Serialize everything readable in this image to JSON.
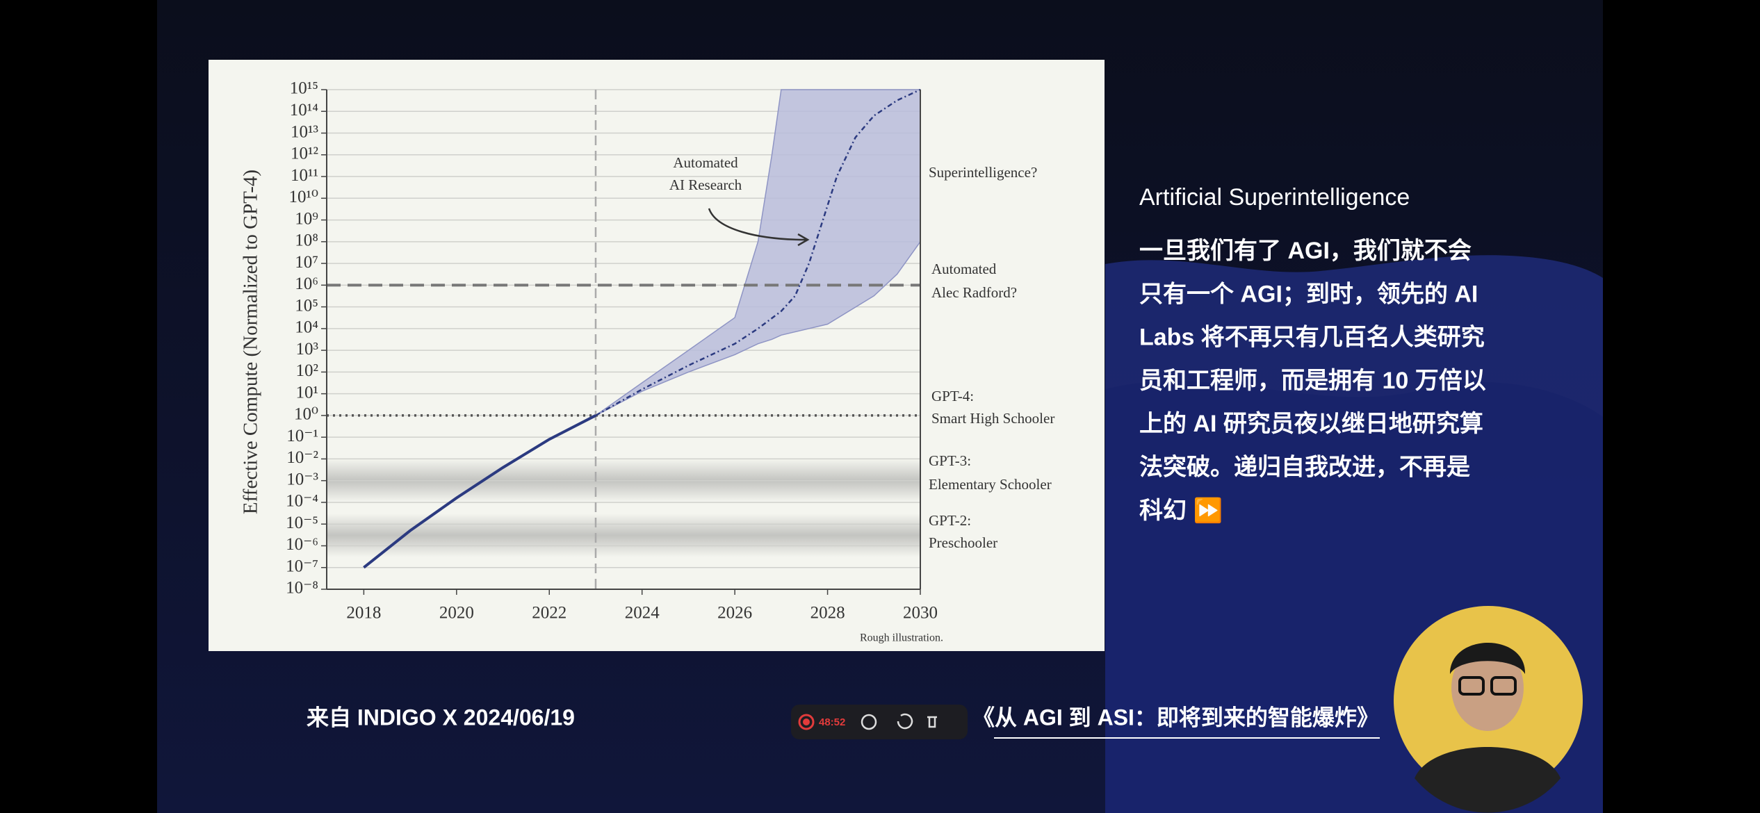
{
  "chart_data": {
    "type": "line",
    "yscale": "log",
    "ylabel": "Effective Compute (Normalized to GPT-4)",
    "note": "Rough illustration.",
    "xlim": [
      2017.2,
      2030
    ],
    "xticks": [
      2018,
      2020,
      2022,
      2024,
      2026,
      2028,
      2030
    ],
    "ylim": [
      1e-08,
      1000000000000000.0
    ],
    "yticks": [
      {
        "value": 1e-08,
        "label": "10⁻⁸"
      },
      {
        "value": 1e-07,
        "label": "10⁻⁷"
      },
      {
        "value": 1e-06,
        "label": "10⁻⁶"
      },
      {
        "value": 1e-05,
        "label": "10⁻⁵"
      },
      {
        "value": 0.0001,
        "label": "10⁻⁴"
      },
      {
        "value": 0.001,
        "label": "10⁻³"
      },
      {
        "value": 0.01,
        "label": "10⁻²"
      },
      {
        "value": 0.1,
        "label": "10⁻¹"
      },
      {
        "value": 1,
        "label": "10⁰"
      },
      {
        "value": 10.0,
        "label": "10¹"
      },
      {
        "value": 100.0,
        "label": "10²"
      },
      {
        "value": 1000.0,
        "label": "10³"
      },
      {
        "value": 10000.0,
        "label": "10⁴"
      },
      {
        "value": 100000.0,
        "label": "10⁵"
      },
      {
        "value": 1000000.0,
        "label": "10⁶"
      },
      {
        "value": 10000000.0,
        "label": "10⁷"
      },
      {
        "value": 100000000.0,
        "label": "10⁸"
      },
      {
        "value": 1000000000.0,
        "label": "10⁹"
      },
      {
        "value": 10000000000.0,
        "label": "10¹⁰"
      },
      {
        "value": 100000000000.0,
        "label": "10¹¹"
      },
      {
        "value": 1000000000000.0,
        "label": "10¹²"
      },
      {
        "value": 10000000000000.0,
        "label": "10¹³"
      },
      {
        "value": 100000000000000.0,
        "label": "10¹⁴"
      },
      {
        "value": 1000000000000000.0,
        "label": "10¹⁵"
      }
    ],
    "grid": true,
    "vline": 2023,
    "series": [
      {
        "style": "solid",
        "color": "#2b3a80",
        "x": [
          2018,
          2019,
          2020,
          2021,
          2022,
          2023
        ],
        "values": [
          1e-07,
          5e-06,
          0.00016,
          0.004,
          0.08,
          1
        ]
      },
      {
        "style": "dashed",
        "color": "#2b3a80",
        "x": [
          2023,
          2024,
          2025,
          2026,
          2026.5,
          2027,
          2027.3,
          2027.6,
          2027.9,
          2028.2,
          2028.6,
          2029,
          2029.5,
          2030
        ],
        "values": [
          1,
          16,
          200,
          2000,
          10000.0,
          63000.0,
          320000.0,
          10000000.0,
          1000000000.0,
          100000000000.0,
          6300000000000.0,
          63000000000000.0,
          320000000000000.0,
          1000000000000000.0
        ]
      }
    ],
    "band": {
      "color": "#b9bcdb",
      "x": [
        2023,
        2024,
        2025,
        2026,
        2026.5,
        2026.8,
        2027,
        2028,
        2029,
        2029.5,
        2030
      ],
      "upper": [
        1,
        32,
        1000,
        32000,
        100000000.0,
        1000000000000.0,
        1000000000000000.0,
        1000000000000000.0,
        1000000000000000.0,
        1000000000000000.0,
        1000000000000000.0
      ],
      "lower": [
        1,
        13,
        100,
        630,
        2000,
        3200,
        5000,
        16000,
        320000,
        3200000,
        100000000.0
      ]
    },
    "reference_lines": [
      {
        "value": 1000000.0,
        "style": "dashed",
        "label": [
          "Automated",
          "Alec Radford?"
        ]
      },
      {
        "value": 1,
        "style": "dotted",
        "label": [
          "GPT-4:",
          "Smart High Schooler"
        ]
      }
    ],
    "level_bands": [
      {
        "from": 0.0001,
        "to": 0.01,
        "label": [
          "GPT-3:",
          "Elementary Schooler"
        ]
      },
      {
        "from": 3e-07,
        "to": 3e-05,
        "label": [
          "GPT-2:",
          "Preschooler"
        ]
      }
    ],
    "annotations": [
      {
        "text": [
          "Superintelligence?"
        ]
      },
      {
        "text": [
          "Automated",
          "AI Research"
        ]
      }
    ]
  },
  "slide": {
    "heading": "Artificial Superintelligence",
    "body_lines": [
      "一旦我们有了 AGI，我们就不会",
      "只有一个 AGI；到时，领先的 AI",
      "Labs 将不再只有几百名人类研究",
      "员和工程师，而是拥有 10 万倍以",
      "上的 AI 研究员夜以继日地研究算",
      "法突破。递归自我改进，不再是",
      "科幻 ⏩"
    ],
    "source": "来自 INDIGO X 2024/06/19",
    "book_title": "《从 AGI 到 ASI：即将到来的智能爆炸》"
  },
  "recorder": {
    "time": "48:52"
  }
}
